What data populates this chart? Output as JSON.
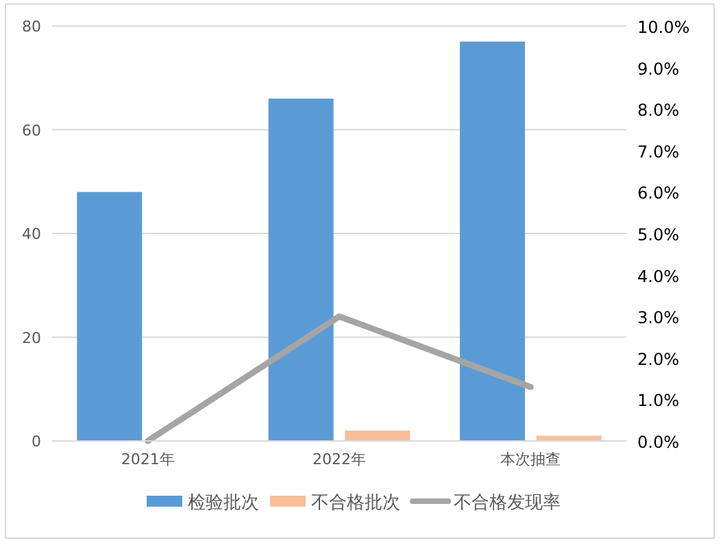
{
  "chart_data": {
    "type": "bar",
    "categories": [
      "2021年",
      "2022年",
      "本次抽查"
    ],
    "series": [
      {
        "name": "检验批次",
        "color": "#5b9bd5",
        "values": [
          48,
          66,
          77
        ]
      },
      {
        "name": "不合格批次",
        "color": "#f8bf98",
        "values": [
          0,
          2,
          1
        ]
      },
      {
        "name": "不合格发现率",
        "type": "line",
        "axis": "y2",
        "color": "#a5a5a5",
        "values": [
          0,
          3.0,
          1.3
        ]
      }
    ],
    "ylim": [
      0,
      80
    ],
    "yticks": [
      0,
      20,
      40,
      60,
      80
    ],
    "y2lim": [
      0,
      10
    ],
    "y2ticks": [
      {
        "value": 0,
        "label": "0.0%"
      },
      {
        "value": 1,
        "label": "1.0%"
      },
      {
        "value": 2,
        "label": "2.0%"
      },
      {
        "value": 3,
        "label": "3.0%"
      },
      {
        "value": 4,
        "label": "4.0%"
      },
      {
        "value": 5,
        "label": "5.0%"
      },
      {
        "value": 6,
        "label": "6.0%"
      },
      {
        "value": 7,
        "label": "7.0%"
      },
      {
        "value": 8,
        "label": "8.0%"
      },
      {
        "value": 9,
        "label": "9.0%"
      },
      {
        "value": 10,
        "label": "10.0%"
      }
    ],
    "grid": "y",
    "legend": "bottom",
    "line_style": "solid"
  }
}
